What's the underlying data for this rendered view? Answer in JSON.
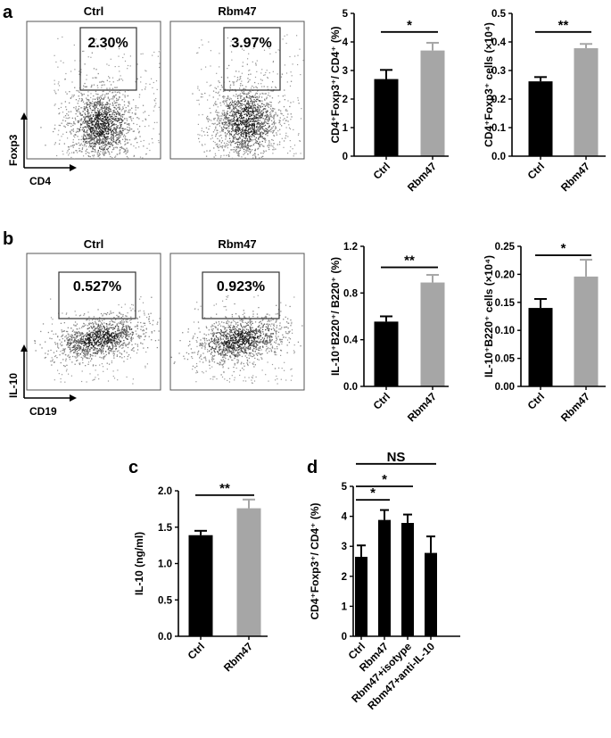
{
  "panels": {
    "a": "a",
    "b": "b",
    "c": "c",
    "d": "d"
  },
  "flow": {
    "a": {
      "ctrl_title": "Ctrl",
      "rbm_title": "Rbm47",
      "ctrl_pct": "2.30%",
      "rbm_pct": "3.97%",
      "y_axis": "Foxp3",
      "x_axis": "CD4"
    },
    "b": {
      "ctrl_title": "Ctrl",
      "rbm_title": "Rbm47",
      "ctrl_pct": "0.527%",
      "rbm_pct": "0.923%",
      "y_axis": "IL-10",
      "x_axis": "CD19"
    }
  },
  "chart_data": [
    {
      "id": "a1",
      "type": "bar",
      "panel": "a",
      "categories": [
        "Ctrl",
        "Rbm47"
      ],
      "values": [
        2.7,
        3.7
      ],
      "errors": [
        0.32,
        0.27
      ],
      "colors": [
        "#000000",
        "#a6a6a6"
      ],
      "ylabel": "CD4⁺Foxp3⁺/ CD4⁺ (%)",
      "ylim": [
        0,
        5
      ],
      "yticks": [
        "0",
        "1",
        "2",
        "3",
        "4",
        "5"
      ],
      "significance": [
        {
          "from": 0,
          "to": 1,
          "label": "*",
          "y": 4.35
        }
      ]
    },
    {
      "id": "a2",
      "type": "bar",
      "panel": "a",
      "categories": [
        "Ctrl",
        "Rbm47"
      ],
      "values": [
        0.262,
        0.378
      ],
      "errors": [
        0.015,
        0.015
      ],
      "colors": [
        "#000000",
        "#a6a6a6"
      ],
      "ylabel": "CD4⁺Foxp3⁺ cells (×10⁴)",
      "ylim": [
        0,
        0.5
      ],
      "yticks": [
        "0.0",
        "0.1",
        "0.2",
        "0.3",
        "0.4",
        "0.5"
      ],
      "significance": [
        {
          "from": 0,
          "to": 1,
          "label": "**",
          "y": 0.435
        }
      ]
    },
    {
      "id": "b1",
      "type": "bar",
      "panel": "b",
      "categories": [
        "Ctrl",
        "Rbm47"
      ],
      "values": [
        0.555,
        0.89
      ],
      "errors": [
        0.045,
        0.065
      ],
      "colors": [
        "#000000",
        "#a6a6a6"
      ],
      "ylabel": "IL-10⁺B220⁺/ B220⁺ (%)",
      "ylim": [
        0,
        1.2
      ],
      "yticks": [
        "0.0",
        "0.4",
        "0.8",
        "1.2"
      ],
      "significance": [
        {
          "from": 0,
          "to": 1,
          "label": "**",
          "y": 1.02
        }
      ]
    },
    {
      "id": "b2",
      "type": "bar",
      "panel": "b",
      "categories": [
        "Ctrl",
        "Rbm47"
      ],
      "values": [
        0.14,
        0.196
      ],
      "errors": [
        0.016,
        0.03
      ],
      "colors": [
        "#000000",
        "#a6a6a6"
      ],
      "ylabel": "IL-10⁺B220⁺ cells (×10⁴)",
      "ylim": [
        0,
        0.25
      ],
      "yticks": [
        "0.00",
        "0.05",
        "0.10",
        "0.15",
        "0.20",
        "0.25"
      ],
      "significance": [
        {
          "from": 0,
          "to": 1,
          "label": "*",
          "y": 0.234
        }
      ]
    },
    {
      "id": "c",
      "type": "bar",
      "panel": "c",
      "categories": [
        "Ctrl",
        "Rbm47"
      ],
      "values": [
        1.39,
        1.76
      ],
      "errors": [
        0.06,
        0.12
      ],
      "colors": [
        "#000000",
        "#a6a6a6"
      ],
      "ylabel": "IL-10 (ng/ml)",
      "ylim": [
        0,
        2.0
      ],
      "yticks": [
        "0.0",
        "0.5",
        "1.0",
        "1.5",
        "2.0"
      ],
      "significance": [
        {
          "from": 0,
          "to": 1,
          "label": "**",
          "y": 1.94
        }
      ]
    },
    {
      "id": "d",
      "type": "bar",
      "panel": "d",
      "categories": [
        "Ctrl",
        "Rbm47",
        "Rbm47+isotype",
        "Rbm47+anti-IL-10"
      ],
      "values": [
        2.65,
        3.88,
        3.78,
        2.78
      ],
      "errors": [
        0.38,
        0.33,
        0.28,
        0.55
      ],
      "colors": [
        "#000000",
        "#000000",
        "#000000",
        "#000000"
      ],
      "ylabel": "CD4⁺Foxp3⁺/ CD4⁺ (%)",
      "ylim": [
        0,
        5
      ],
      "yticks": [
        "0",
        "1",
        "2",
        "3",
        "4",
        "5"
      ],
      "significance": [
        {
          "from": 0,
          "to": 1,
          "label": "*",
          "y": 4.55
        },
        {
          "from": 0,
          "to": 2,
          "label": "*",
          "y": 5.0
        },
        {
          "from": 0,
          "to": 3,
          "label": "NS",
          "y": 5.75
        }
      ]
    }
  ]
}
